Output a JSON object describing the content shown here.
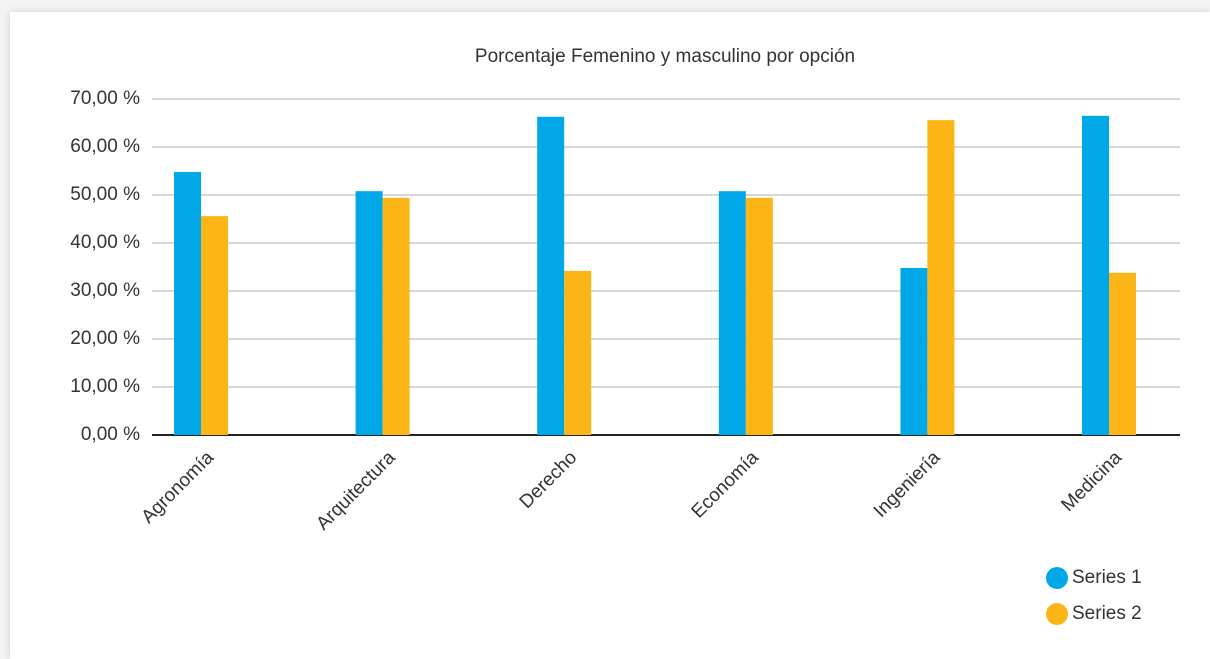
{
  "chart_data": {
    "type": "bar",
    "title": "Porcentaje Femenino y masculino por opción",
    "categories": [
      "Agronomía",
      "Arquitectura",
      "Derecho",
      "Economía",
      "Ingeniería",
      "Medicina"
    ],
    "series": [
      {
        "name": "Series 1",
        "color": "#00a8e8",
        "values": [
          54.8,
          50.8,
          66.3,
          50.8,
          34.8,
          66.5
        ]
      },
      {
        "name": "Series 2",
        "color": "#fbb516",
        "values": [
          45.6,
          49.4,
          34.2,
          49.4,
          65.6,
          33.8
        ]
      }
    ],
    "ylim": [
      0,
      70
    ],
    "yticks": [
      {
        "value": 0,
        "label": "0,00 %"
      },
      {
        "value": 10,
        "label": "10,00 %"
      },
      {
        "value": 20,
        "label": "20,00 %"
      },
      {
        "value": 30,
        "label": "30,00 %"
      },
      {
        "value": 40,
        "label": "40,00 %"
      },
      {
        "value": 50,
        "label": "50,00 %"
      },
      {
        "value": 60,
        "label": "60,00 %"
      },
      {
        "value": 70,
        "label": "70,00 %"
      }
    ],
    "grid": true,
    "legend": "bottom-right"
  }
}
